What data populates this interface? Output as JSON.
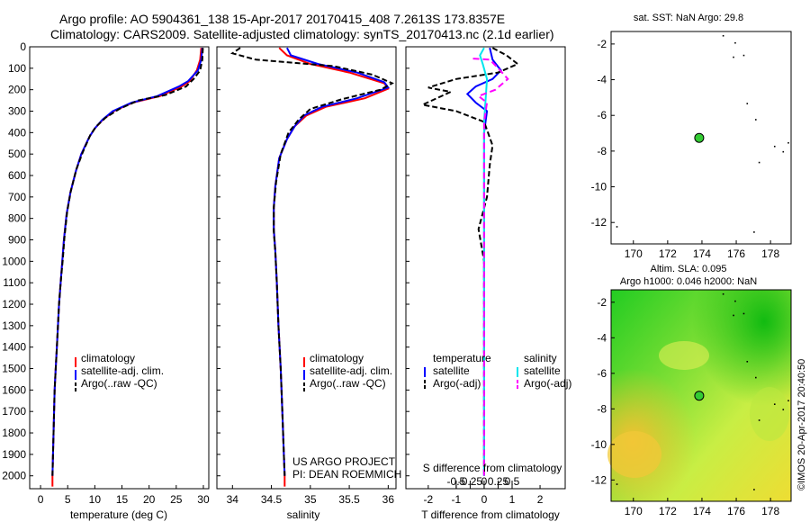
{
  "header": {
    "title_line1": "Argo profile: AO 5904361_138 15-Apr-2017 20170415_408 7.2613S 173.8357E",
    "title_line2": "Climatology: CARS2009. Satellite-adjusted climatology: synTS_20170413.nc (2.1d earlier)"
  },
  "chart_data": [
    {
      "id": "temperature",
      "type": "line",
      "xlabel": "temperature (deg C)",
      "ylabel": "",
      "xlim": [
        -2,
        31
      ],
      "ylim": [
        2060,
        0
      ],
      "xticks": [
        0,
        5,
        10,
        15,
        20,
        25,
        30
      ],
      "xtick_labels": [
        "0",
        "5",
        "10",
        "15",
        "20",
        "25",
        "30"
      ],
      "yticks": [
        0,
        100,
        200,
        300,
        400,
        500,
        600,
        700,
        800,
        900,
        1000,
        1100,
        1200,
        1300,
        1400,
        1500,
        1600,
        1700,
        1800,
        1900,
        2000
      ],
      "ytick_labels": [
        "0",
        "100",
        "200",
        "300",
        "400",
        "500",
        "600",
        "700",
        "800",
        "900",
        "1000",
        "1100",
        "1200",
        "1300",
        "1400",
        "1500",
        "1600",
        "1700",
        "1800",
        "1900",
        "2000"
      ],
      "legend": {
        "position": "lower-middle",
        "entries": [
          "climatology",
          "satellite-adj. clim.",
          "Argo(..raw -QC)"
        ]
      },
      "series": [
        {
          "name": "climatology",
          "color": "#ff0000",
          "dash": "none",
          "points": [
            [
              29.6,
              5
            ],
            [
              29.4,
              60
            ],
            [
              28.8,
              110
            ],
            [
              27.5,
              160
            ],
            [
              26.0,
              185
            ],
            [
              22.0,
              230
            ],
            [
              17.0,
              260
            ],
            [
              13.5,
              300
            ],
            [
              11.5,
              340
            ],
            [
              10.0,
              380
            ],
            [
              9.0,
              420
            ],
            [
              7.5,
              500
            ],
            [
              6.5,
              580
            ],
            [
              5.5,
              680
            ],
            [
              4.8,
              780
            ],
            [
              4.3,
              900
            ],
            [
              4.0,
              1000
            ],
            [
              3.7,
              1100
            ],
            [
              3.4,
              1200
            ],
            [
              3.2,
              1300
            ],
            [
              3.0,
              1400
            ],
            [
              2.8,
              1500
            ],
            [
              2.6,
              1600
            ],
            [
              2.5,
              1700
            ],
            [
              2.4,
              1800
            ],
            [
              2.3,
              1900
            ],
            [
              2.2,
              2000
            ],
            [
              2.2,
              2050
            ]
          ]
        },
        {
          "name": "satellite-adj. clim.",
          "color": "#0000ff",
          "dash": "none",
          "points": [
            [
              29.8,
              5
            ],
            [
              29.6,
              60
            ],
            [
              29.0,
              110
            ],
            [
              27.2,
              160
            ],
            [
              25.5,
              185
            ],
            [
              21.5,
              230
            ],
            [
              16.8,
              260
            ],
            [
              13.3,
              300
            ],
            [
              11.4,
              340
            ],
            [
              10.0,
              380
            ],
            [
              9.0,
              420
            ],
            [
              7.5,
              500
            ],
            [
              6.5,
              580
            ],
            [
              5.5,
              680
            ],
            [
              4.8,
              780
            ],
            [
              4.3,
              900
            ],
            [
              4.0,
              1000
            ],
            [
              3.7,
              1100
            ],
            [
              3.4,
              1200
            ],
            [
              3.2,
              1300
            ],
            [
              3.0,
              1400
            ],
            [
              2.8,
              1500
            ],
            [
              2.6,
              1600
            ],
            [
              2.5,
              1700
            ],
            [
              2.4,
              1800
            ],
            [
              2.3,
              1900
            ],
            [
              2.2,
              2000
            ]
          ]
        },
        {
          "name": "Argo(..raw -QC)",
          "color": "#000000",
          "dash": "6,3",
          "points": [
            [
              29.9,
              5
            ],
            [
              29.8,
              60
            ],
            [
              29.4,
              110
            ],
            [
              28.2,
              150
            ],
            [
              26.8,
              185
            ],
            [
              23.0,
              225
            ],
            [
              18.0,
              250
            ],
            [
              14.5,
              290
            ],
            [
              12.0,
              330
            ],
            [
              10.3,
              370
            ],
            [
              9.2,
              410
            ],
            [
              7.8,
              490
            ],
            [
              6.6,
              570
            ],
            [
              5.6,
              670
            ],
            [
              4.9,
              770
            ],
            [
              4.4,
              890
            ],
            [
              4.1,
              990
            ],
            [
              3.7,
              1100
            ],
            [
              3.4,
              1200
            ],
            [
              3.2,
              1300
            ],
            [
              3.0,
              1400
            ],
            [
              2.8,
              1500
            ],
            [
              2.6,
              1600
            ],
            [
              2.5,
              1700
            ],
            [
              2.4,
              1800
            ],
            [
              2.3,
              1900
            ],
            [
              2.2,
              2000
            ]
          ]
        }
      ]
    },
    {
      "id": "salinity",
      "type": "line",
      "xlabel": "salinity",
      "xlim": [
        33.8,
        36.1
      ],
      "ylim": [
        2060,
        0
      ],
      "xticks": [
        34,
        34.5,
        35,
        35.5,
        36
      ],
      "xtick_labels": [
        "34",
        "34.5",
        "35",
        "35.5",
        "36"
      ],
      "legend": {
        "position": "lower-middle",
        "entries": [
          "climatology",
          "satellite-adj. clim.",
          "Argo(..raw -QC)"
        ]
      },
      "annotation_lines": [
        "US ARGO PROJECT",
        "PI: DEAN ROEMMICH"
      ],
      "series": [
        {
          "name": "climatology",
          "color": "#ff0000",
          "dash": "none",
          "points": [
            [
              34.6,
              5
            ],
            [
              34.7,
              40
            ],
            [
              35.0,
              80
            ],
            [
              35.5,
              120
            ],
            [
              35.95,
              170
            ],
            [
              36.0,
              195
            ],
            [
              35.7,
              240
            ],
            [
              35.2,
              280
            ],
            [
              34.95,
              320
            ],
            [
              34.8,
              370
            ],
            [
              34.7,
              430
            ],
            [
              34.6,
              520
            ],
            [
              34.55,
              650
            ],
            [
              34.53,
              750
            ],
            [
              34.53,
              850
            ],
            [
              34.55,
              950
            ],
            [
              34.57,
              1100
            ],
            [
              34.59,
              1300
            ],
            [
              34.62,
              1500
            ],
            [
              34.64,
              1700
            ],
            [
              34.66,
              1900
            ],
            [
              34.67,
              2000
            ],
            [
              34.67,
              2050
            ]
          ]
        },
        {
          "name": "satellite-adj. clim.",
          "color": "#0000ff",
          "dash": "none",
          "points": [
            [
              34.7,
              5
            ],
            [
              34.75,
              40
            ],
            [
              35.1,
              80
            ],
            [
              35.6,
              120
            ],
            [
              35.95,
              165
            ],
            [
              36.0,
              190
            ],
            [
              35.6,
              240
            ],
            [
              35.15,
              280
            ],
            [
              34.92,
              320
            ],
            [
              34.8,
              370
            ],
            [
              34.7,
              430
            ],
            [
              34.6,
              520
            ],
            [
              34.55,
              650
            ],
            [
              34.53,
              750
            ],
            [
              34.53,
              850
            ],
            [
              34.55,
              950
            ],
            [
              34.57,
              1100
            ],
            [
              34.59,
              1300
            ],
            [
              34.62,
              1500
            ],
            [
              34.64,
              1700
            ],
            [
              34.66,
              1900
            ],
            [
              34.67,
              2000
            ]
          ]
        },
        {
          "name": "Argo(..raw -QC)",
          "color": "#000000",
          "dash": "6,3",
          "points": [
            [
              34.1,
              5
            ],
            [
              34.0,
              30
            ],
            [
              34.3,
              60
            ],
            [
              35.3,
              90
            ],
            [
              35.8,
              130
            ],
            [
              36.05,
              170
            ],
            [
              35.9,
              200
            ],
            [
              35.4,
              245
            ],
            [
              35.0,
              290
            ],
            [
              34.85,
              340
            ],
            [
              34.72,
              400
            ],
            [
              34.62,
              500
            ],
            [
              34.56,
              630
            ],
            [
              34.53,
              750
            ],
            [
              34.53,
              860
            ],
            [
              34.55,
              960
            ],
            [
              34.57,
              1100
            ],
            [
              34.59,
              1300
            ],
            [
              34.62,
              1500
            ],
            [
              34.64,
              1700
            ],
            [
              34.66,
              1900
            ],
            [
              34.67,
              2000
            ]
          ]
        }
      ]
    },
    {
      "id": "difference",
      "type": "line",
      "xlabel": "T difference from climatology",
      "top_axis_label": "S difference from climatology",
      "xlim": [
        -2.8,
        2.9
      ],
      "ylim": [
        2060,
        0
      ],
      "xticks": [
        -2,
        -1,
        0,
        1,
        2
      ],
      "xtick_labels": [
        "-2",
        "-1",
        "0",
        "1",
        "2"
      ],
      "sticks_values": [
        -0.5,
        -0.25,
        0,
        0.25,
        0.5
      ],
      "sticks_labels": [
        "-0.5",
        "-0.25",
        "0",
        "0.25",
        "0.5"
      ],
      "legend": {
        "position": "lower-middle",
        "group_titles": [
          "temperature",
          "salinity"
        ],
        "entries": [
          "satellite",
          "Argo(-adj)",
          "satellite",
          "Argo(-adj)"
        ]
      },
      "series": [
        {
          "name": "T satellite",
          "color": "#0000ff",
          "dash": "none",
          "points": [
            [
              0.2,
              5
            ],
            [
              0.3,
              60
            ],
            [
              0.6,
              110
            ],
            [
              0.3,
              150
            ],
            [
              -0.3,
              185
            ],
            [
              -0.6,
              220
            ],
            [
              -0.3,
              260
            ],
            [
              0.1,
              300
            ],
            [
              0.0,
              400
            ],
            [
              0.0,
              600
            ],
            [
              0.0,
              800
            ],
            [
              0.0,
              1000
            ],
            [
              0.0,
              1500
            ],
            [
              0.0,
              2000
            ]
          ]
        },
        {
          "name": "T Argo(-adj)",
          "color": "#000000",
          "dash": "6,3",
          "points": [
            [
              0.3,
              5
            ],
            [
              0.8,
              40
            ],
            [
              1.2,
              80
            ],
            [
              0.5,
              120
            ],
            [
              -1.0,
              150
            ],
            [
              -2.0,
              190
            ],
            [
              -1.2,
              210
            ],
            [
              -2.2,
              270
            ],
            [
              -1.0,
              300
            ],
            [
              0.0,
              350
            ],
            [
              0.3,
              460
            ],
            [
              0.2,
              550
            ],
            [
              0.1,
              700
            ],
            [
              -0.2,
              850
            ],
            [
              0.0,
              1000
            ],
            [
              0.0,
              1500
            ],
            [
              0.0,
              2000
            ]
          ]
        },
        {
          "name": "S satellite",
          "color": "#00e5ee",
          "dash": "none",
          "points": [
            [
              0.0,
              5
            ],
            [
              -0.15,
              40
            ],
            [
              -0.05,
              80
            ],
            [
              0.1,
              150
            ],
            [
              0.05,
              250
            ],
            [
              0.0,
              350
            ],
            [
              0.0,
              600
            ],
            [
              0.0,
              900
            ],
            [
              0.0,
              1300
            ],
            [
              0.0,
              1700
            ],
            [
              0.0,
              2000
            ]
          ]
        },
        {
          "name": "S Argo(-adj)",
          "color": "#ff00ff",
          "dash": "7,4",
          "points": [
            [
              -0.4,
              55
            ],
            [
              0.2,
              60
            ],
            [
              0.5,
              100
            ],
            [
              0.85,
              150
            ],
            [
              0.4,
              200
            ],
            [
              -0.2,
              230
            ],
            [
              0.1,
              260
            ],
            [
              0.0,
              350
            ],
            [
              0.0,
              600
            ],
            [
              0.0,
              1000
            ],
            [
              0.0,
              2000
            ]
          ]
        }
      ]
    },
    {
      "id": "sst_map",
      "type": "scatter",
      "title": "sat. SST: NaN Argo: 29.8",
      "xlim": [
        168.7,
        179.2
      ],
      "ylim": [
        -13.2,
        -1.3
      ],
      "xticks": [
        170,
        172,
        174,
        176,
        178
      ],
      "xtick_labels": [
        "170",
        "172",
        "174",
        "176",
        "178"
      ],
      "yticks": [
        -2,
        -4,
        -6,
        -8,
        -10,
        -12
      ],
      "ytick_labels": [
        "-2",
        "-4",
        "-6",
        "-8",
        "-10",
        "-12"
      ],
      "float_position": [
        173.84,
        -7.26
      ],
      "float_color": "#33cc33"
    },
    {
      "id": "sla_map",
      "type": "heatmap",
      "title_line1": "Altim. SLA: 0.095",
      "title_line2": "Argo h1000: 0.046 h2000: NaN",
      "xlim": [
        168.7,
        179.2
      ],
      "ylim": [
        -13.2,
        -1.3
      ],
      "xticks": [
        170,
        172,
        174,
        176,
        178
      ],
      "xtick_labels": [
        "170",
        "172",
        "174",
        "176",
        "178"
      ],
      "yticks": [
        -2,
        -4,
        -6,
        -8,
        -10,
        -12
      ],
      "ytick_labels": [
        "-2",
        "-4",
        "-6",
        "-8",
        "-10",
        "-12"
      ],
      "float_position": [
        173.84,
        -7.26
      ],
      "float_color": "#33cc33"
    }
  ],
  "side_credit": "©IMOS 20-Apr-2017 20:40:50"
}
